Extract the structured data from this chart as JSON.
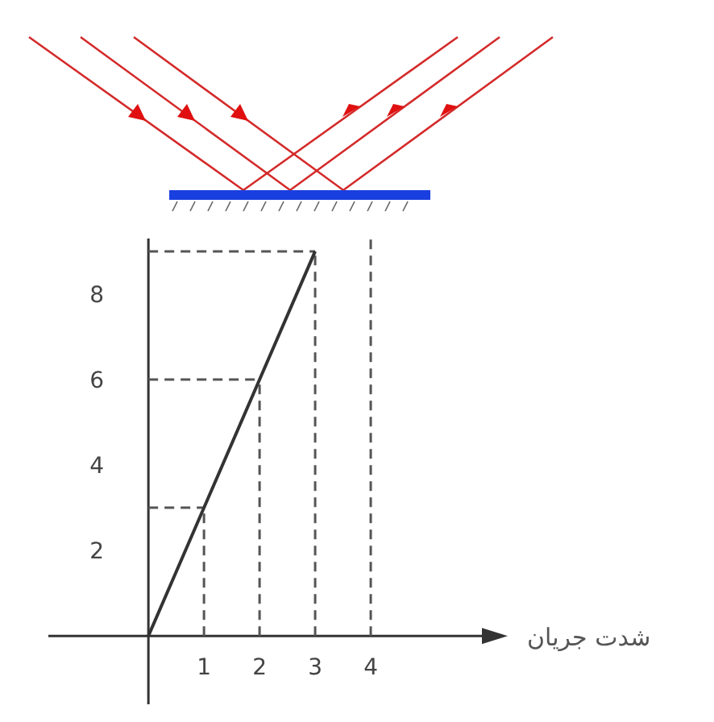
{
  "chart_data": {
    "type": "line",
    "xlabel": "شدت جریان",
    "x": [
      0,
      1,
      2,
      3
    ],
    "series": [
      {
        "color": "#333333",
        "values": [
          0,
          3,
          6,
          9
        ]
      }
    ],
    "xlim": [
      -1.8,
      6.0
    ],
    "ylim": [
      -1.6,
      9.3
    ],
    "xticks": [
      1,
      2,
      3,
      4
    ],
    "yticks": [
      2,
      4,
      6,
      8
    ],
    "ref_lines": [
      {
        "axis": "x",
        "value": 1,
        "color": "#555555",
        "line_style": "dashed"
      },
      {
        "axis": "x",
        "value": 2,
        "color": "#555555",
        "line_style": "dashed"
      },
      {
        "axis": "x",
        "value": 3,
        "color": "#555555",
        "line_style": "dashed"
      },
      {
        "axis": "x",
        "value": 4,
        "color": "#555555",
        "line_style": "dashed"
      },
      {
        "axis": "y",
        "value": 3,
        "color": "#555555",
        "line_style": "dashed"
      },
      {
        "axis": "y",
        "value": 6,
        "color": "#555555",
        "line_style": "dashed"
      },
      {
        "axis": "y",
        "value": 9,
        "color": "#555555",
        "line_style": "dashed"
      }
    ]
  }
}
